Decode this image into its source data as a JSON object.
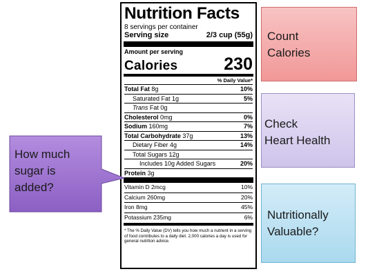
{
  "label": {
    "title": "Nutrition Facts",
    "servings": "8 servings per container",
    "serving_size_label": "Serving size",
    "serving_size_value": "2/3 cup (55g)",
    "amount_per_serving": "Amount per serving",
    "calories_label": "Calories",
    "calories_value": "230",
    "daily_value_header": "% Daily Value*",
    "rows": {
      "total_fat": {
        "name": "Total Fat",
        "amount": "8g",
        "pct": "10%"
      },
      "sat_fat": {
        "name": "Saturated Fat 1g",
        "pct": "5%"
      },
      "trans_fat": {
        "name": "Trans",
        "amount": "Fat 0g"
      },
      "cholesterol": {
        "name": "Cholesterol",
        "amount": "0mg",
        "pct": "0%"
      },
      "sodium": {
        "name": "Sodium",
        "amount": "160mg",
        "pct": "7%"
      },
      "carb": {
        "name": "Total Carbohydrate",
        "amount": "37g",
        "pct": "13%"
      },
      "fiber": {
        "name": "Dietary Fiber 4g",
        "pct": "14%"
      },
      "sugars": {
        "name": "Total Sugars 12g"
      },
      "added_sugars": {
        "name": "Includes 10g Added Sugars",
        "pct": "20%"
      },
      "protein": {
        "name": "Protein",
        "amount": "3g"
      },
      "vitamin_d": {
        "name": "Vitamin D 2mcg",
        "pct": "10%"
      },
      "calcium": {
        "name": "Calcium 260mg",
        "pct": "20%"
      },
      "iron": {
        "name": "Iron 8mg",
        "pct": "45%"
      },
      "potassium": {
        "name": "Potassium 235mg",
        "pct": "6%"
      }
    },
    "footnote": "* The % Daily Value (DV) tells you how much a nutrient in a serving of food contributes to a daily diet. 2,000 calories a day is used for general nutrition advice."
  },
  "boxes": {
    "count_calories": [
      "Count",
      "Calories"
    ],
    "heart_health": [
      "Check",
      "Heart Health"
    ],
    "valuable": [
      "Nutritionally",
      "Valuable?"
    ]
  },
  "callout": [
    "How much",
    "sugar is",
    "added?"
  ],
  "colors": {
    "red_box": "#f4a9a9",
    "lavender_box": "#d9d2f0",
    "blue_box": "#bfe3f3",
    "callout": "#9b72cb"
  }
}
